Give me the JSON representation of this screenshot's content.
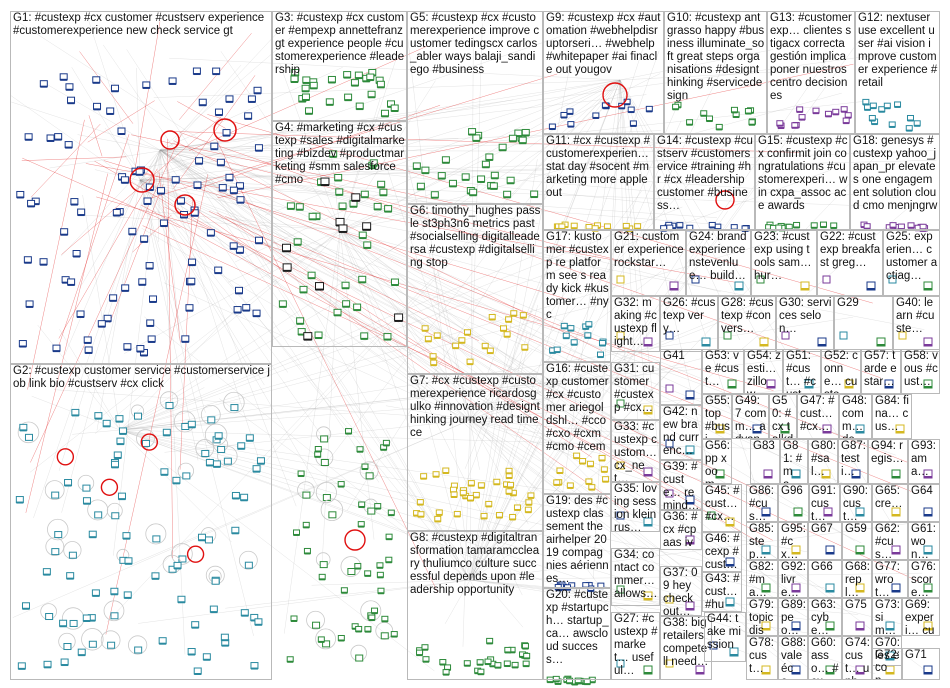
{
  "groups": [
    {
      "id": "G1",
      "text": "G1: #custexp #cx customer #custserv experience #customerexperience new check service gt"
    },
    {
      "id": "G2",
      "text": "G2: #custexp customer service #customerservice job link bio #custserv #cx click"
    },
    {
      "id": "G3",
      "text": "G3: #custexp #cx customer #empexp annettefranz gt experience people #customerexperience #leadership"
    },
    {
      "id": "G4",
      "text": "G4: #marketing #cx #custexp #sales #digitalmarketing #bizdev #productmarketing #smm salesforce #cmo"
    },
    {
      "id": "G5",
      "text": "G5: #custexp #cx #customerexperience improve customer tedingscx carlos_abler ways balaji_sandiego #business"
    },
    {
      "id": "G6",
      "text": "G6: timothy_hughes passle st3ph3n6 metrics past #socialselling digitalleadersa #custexp #digitalselling stop"
    },
    {
      "id": "G7",
      "text": "G7: #cx #custexp #customerexperience ricardosgulko #innovation #designthinking journey read time ce"
    },
    {
      "id": "G8",
      "text": "G8: #custexp #digitaltransformation tamaramccleary thuliumco culture successful depends upon #leadership opportunity"
    },
    {
      "id": "G9",
      "text": "G9: #custexp #cx #automation #webhelpdisruptorseri… #webhelp #whitepaper #ai finacle out yougov"
    },
    {
      "id": "G10",
      "text": "G10: #custexp antgrasso happy #business illuminate_soft great steps organisations #designthinking #servicedesign"
    },
    {
      "id": "G13",
      "text": "G13: #customerexp… clientes stigacx correcta gestión implica poner nuestros centro decisiones"
    },
    {
      "id": "G12",
      "text": "G12: nextuser use excellent user #ai vision improve customer experience #retail"
    },
    {
      "id": "G11",
      "text": "G11: #cx #custexp #customerexperien… stat day #socent #marketing more apple out"
    },
    {
      "id": "G14",
      "text": "G14: #custexp #custserv #customerservice #training #hr #cx #leadership customer #business…"
    },
    {
      "id": "G15",
      "text": "G15: #custexp #cx confirmit join congratulations #customerexperi… win cxpa_assoc ace awards"
    },
    {
      "id": "G18",
      "text": "G18: genesys #custexp yahoo_japan_pr elevates one engagement solution cloud cmo menjngrw"
    },
    {
      "id": "G17",
      "text": "G17: kustomer #custexp re platform see s ready kick #kustomer… #nyc"
    },
    {
      "id": "G21",
      "text": "G21: customer experience rockstar…"
    },
    {
      "id": "G24",
      "text": "G24: brand experience nstevenlue… build…"
    },
    {
      "id": "G23",
      "text": "G23: #custexp using tools sam… hur…"
    },
    {
      "id": "G22",
      "text": "G22: #custexp breakfast greg…"
    },
    {
      "id": "G25",
      "text": "G25: experien… customer actiag…"
    },
    {
      "id": "G32",
      "text": "G32: making #custexp flight…"
    },
    {
      "id": "G26",
      "text": "G26: #custexp very…"
    },
    {
      "id": "G28",
      "text": "G28: #custexp #convers…"
    },
    {
      "id": "G30",
      "text": "G30: services selon…"
    },
    {
      "id": "G29",
      "text": "G29"
    },
    {
      "id": "G40",
      "text": "G40: learn #custe…"
    },
    {
      "id": "G16",
      "text": "G16: #custexp customer #cx #customer ariegoldshl… #cco #cxo #cxm #cmo #cem"
    },
    {
      "id": "G31",
      "text": "G31: customer #custexp #cx…"
    },
    {
      "id": "G41",
      "text": "G41"
    },
    {
      "id": "G53",
      "text": "G53: ve #cust…"
    },
    {
      "id": "G54",
      "text": "G54: zesti… zillow…"
    },
    {
      "id": "G51",
      "text": "G51: #cust… #cust…"
    },
    {
      "id": "G52",
      "text": "G52: conne… custo…"
    },
    {
      "id": "G57",
      "text": "G57: tarde estar…"
    },
    {
      "id": "G58",
      "text": "G58: vous #cust…"
    },
    {
      "id": "G33",
      "text": "G33: #custexp custom… cx_net…"
    },
    {
      "id": "G42",
      "text": "G42: new brand currenc…"
    },
    {
      "id": "G55",
      "text": "G55: top #busi…"
    },
    {
      "id": "G49",
      "text": "G49: 7 comm… advant…"
    },
    {
      "id": "G50",
      "text": "G50: #cx talkde…"
    },
    {
      "id": "G47",
      "text": "G47: #cust… #cx…"
    },
    {
      "id": "G48",
      "text": "G48: comm… des…"
    },
    {
      "id": "G84",
      "text": "G84: fina… cus…"
    },
    {
      "id": "G39",
      "text": "G39: #custe… remind… cab…"
    },
    {
      "id": "G56",
      "text": "G56: pp xoom…"
    },
    {
      "id": "G83",
      "text": "G83"
    },
    {
      "id": "G81",
      "text": "G81: #ma…"
    },
    {
      "id": "G80",
      "text": "G80: #sal…"
    },
    {
      "id": "G87",
      "text": "G87: testi…"
    },
    {
      "id": "G94",
      "text": "G94: regis…"
    },
    {
      "id": "G93",
      "text": "G93: ama…"
    },
    {
      "id": "G35",
      "text": "G35: loving session kleinrus…"
    },
    {
      "id": "G45",
      "text": "G45: #cust… #cx…"
    },
    {
      "id": "G86",
      "text": "G86: #cus…"
    },
    {
      "id": "G96",
      "text": "G96"
    },
    {
      "id": "G91",
      "text": "G91: cust…"
    },
    {
      "id": "G90",
      "text": "G90: cust…"
    },
    {
      "id": "G65",
      "text": "G65: cre…"
    },
    {
      "id": "G64",
      "text": "G64"
    },
    {
      "id": "G19",
      "text": "G19: des #custexp classement theairhelper 2019 compagnies aériennes…"
    },
    {
      "id": "G36",
      "text": "G36: #cx #cpaas ivr…"
    },
    {
      "id": "G85",
      "text": "G85: step…"
    },
    {
      "id": "G95",
      "text": "G95: #cx…"
    },
    {
      "id": "G67",
      "text": "G67"
    },
    {
      "id": "G59",
      "text": "G59"
    },
    {
      "id": "G62",
      "text": "G62: #cus…"
    },
    {
      "id": "G61",
      "text": "G61: won…"
    },
    {
      "id": "G34",
      "text": "G34: contact commer… allows…"
    },
    {
      "id": "G46",
      "text": "G46: #cexp #cust…"
    },
    {
      "id": "G82",
      "text": "G82: #ma…"
    },
    {
      "id": "G92",
      "text": "G92: livre…"
    },
    {
      "id": "G66",
      "text": "G66"
    },
    {
      "id": "G68",
      "text": "G68: repl…"
    },
    {
      "id": "G77",
      "text": "G77: wrot…"
    },
    {
      "id": "G76",
      "text": "G76: score…"
    },
    {
      "id": "G37",
      "text": "G37: 09 hey check out…"
    },
    {
      "id": "G43",
      "text": "G43: #cust… #hum…"
    },
    {
      "id": "G20",
      "text": "G20: #custexp #startupch… startup_ca… awscloud success…"
    },
    {
      "id": "G27",
      "text": "G27: #custexp #market… useful…"
    },
    {
      "id": "G79",
      "text": "G79: topic disc…"
    },
    {
      "id": "G89",
      "text": "G89: peo…"
    },
    {
      "id": "G63",
      "text": "G63: cybe…"
    },
    {
      "id": "G75",
      "text": "G75"
    },
    {
      "id": "G73",
      "text": "G73: sim… fact…"
    },
    {
      "id": "G69",
      "text": "G69: experi… cus…"
    },
    {
      "id": "G38",
      "text": "G38: big retailers compete ll need…"
    },
    {
      "id": "G44",
      "text": "G44: take mission"
    },
    {
      "id": "G78",
      "text": "G78: cust…"
    },
    {
      "id": "G88",
      "text": "G88: vale éco…"
    },
    {
      "id": "G60",
      "text": "G60: asso… #cus…"
    },
    {
      "id": "G74",
      "text": "G74: cust… unh…"
    },
    {
      "id": "G70",
      "text": "G70: les et"
    },
    {
      "id": "G72",
      "text": "G72: con…"
    },
    {
      "id": "G71",
      "text": "G71"
    }
  ],
  "colors": {
    "border": "#b9b9b9",
    "edge_gray": "#9a9a9a",
    "edge_red": "#e01010",
    "node_blue": "#1a3a8a",
    "node_teal": "#2a8aa0",
    "node_green": "#2d8a3a",
    "node_yellow": "#d4b820",
    "node_purple": "#7a3a9a"
  }
}
